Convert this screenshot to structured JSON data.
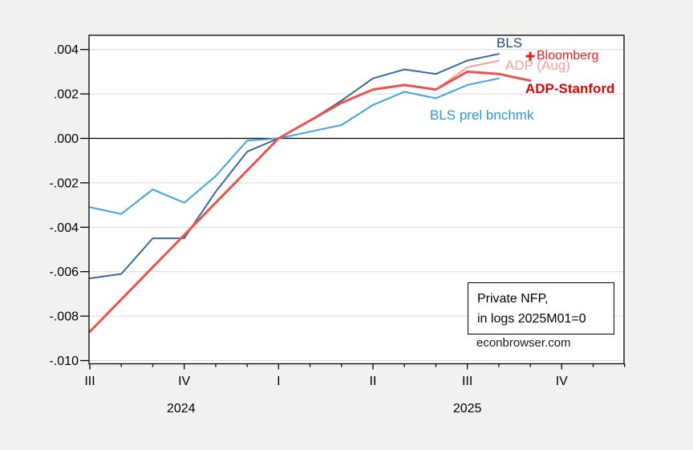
{
  "chart_data": {
    "type": "line",
    "title": "",
    "xlabel": "",
    "ylabel": "",
    "grid": true,
    "x_months": [
      "2024-07",
      "2024-08",
      "2024-09",
      "2024-10",
      "2024-11",
      "2024-12",
      "2025-01",
      "2025-02",
      "2025-03",
      "2025-04",
      "2025-05",
      "2025-06",
      "2025-07",
      "2025-08",
      "2025-09",
      "2025-10",
      "2025-11",
      "2025-12"
    ],
    "x_axis": {
      "quarter_tick_labels": [
        "III",
        "IV",
        "I",
        "II",
        "III",
        "IV"
      ],
      "quarter_tick_month_index": [
        0,
        3,
        6,
        9,
        12,
        15
      ],
      "year_labels": [
        "2024",
        "2025"
      ],
      "year_label_month_index": [
        2.9,
        12.0
      ],
      "minor_ticks": "monthly"
    },
    "y_axis": {
      "tick_labels": [
        ".004",
        ".002",
        ".000",
        "-.002",
        "-.004",
        "-.006",
        "-.008",
        "-.010"
      ],
      "tick_values": [
        0.004,
        0.002,
        0.0,
        -0.002,
        -0.004,
        -0.006,
        -0.008,
        -0.01
      ],
      "ylim": [
        -0.0102,
        0.00465
      ],
      "zero_line": true
    },
    "series": [
      {
        "name": "ADP (Aug)",
        "color": "#f5a099",
        "line_width": 2,
        "start_month_index": 6,
        "values": [
          0.0,
          0.0008,
          0.0016,
          0.0022,
          0.0024,
          0.0022,
          0.0032,
          0.0035
        ]
      },
      {
        "name": "BLS prel bnchmk",
        "color": "#42a3dc",
        "line_width": 2,
        "start_month_index": 0,
        "values": [
          -0.0031,
          -0.0034,
          -0.0023,
          -0.0029,
          -0.0017,
          -0.0001,
          0.0,
          0.0003,
          0.0006,
          0.0015,
          0.0021,
          0.0018,
          0.0024,
          0.0027
        ]
      },
      {
        "name": "BLS",
        "color": "#39689b",
        "line_width": 2,
        "start_month_index": 0,
        "values": [
          -0.0063,
          -0.0061,
          -0.0045,
          -0.0045,
          -0.0024,
          -0.0006,
          0.0,
          0.0008,
          0.0017,
          0.0027,
          0.0031,
          0.0029,
          0.0035,
          0.0038
        ]
      },
      {
        "name": "ADP-Stanford",
        "color": "#e9534f",
        "line_width": 3,
        "start_month_index": 0,
        "values": [
          -0.0087,
          -0.00725,
          -0.0058,
          -0.00435,
          -0.0029,
          -0.00145,
          0.0,
          0.0008,
          0.0016,
          0.0022,
          0.0024,
          0.0022,
          0.003,
          0.0029,
          0.0026
        ]
      }
    ],
    "markers": [
      {
        "name": "Bloomberg",
        "shape": "plus",
        "color": "#e11b22",
        "month_index": 14,
        "value": 0.0037
      }
    ]
  },
  "labels": {
    "bls": {
      "text": "BLS",
      "color": "#1e4a7a"
    },
    "bloomberg": {
      "text": "Bloomberg",
      "color": "#e11b22"
    },
    "adp_aug": {
      "text": "ADP (Aug)",
      "color": "#f5a099"
    },
    "adp_stanford": {
      "text": "ADP-Stanford",
      "color": "#d10808"
    },
    "bls_prel": {
      "text": "BLS prel bnchmk",
      "color": "#2e96d3"
    }
  },
  "annotation": {
    "line1": "Private NFP,",
    "line2": "in logs 2025M01=0"
  },
  "source": "econbrowser.com",
  "colors": {
    "page_background": "#f1f1ef",
    "plot_background": "#ffffff",
    "gridline": "#d9d9d9",
    "axis": "#000000"
  }
}
